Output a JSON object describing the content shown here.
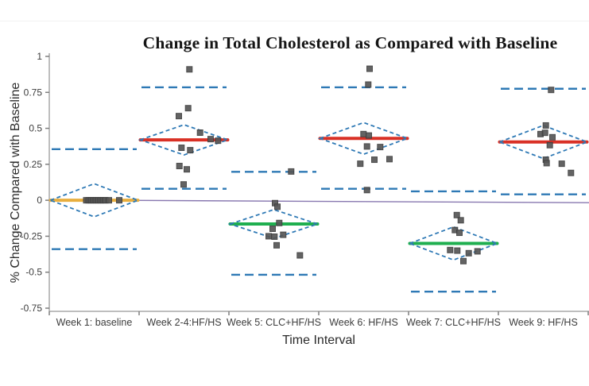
{
  "chart_data": {
    "type": "scatter",
    "title": "Change in Total Cholesterol as Compared with Baseline",
    "xlabel": "Time Interval",
    "ylabel": "% Change Compared with Baseline",
    "ylim": [
      -0.75,
      1
    ],
    "grid": false,
    "legend": "none",
    "y_tick_labels": [
      "1",
      "0.75",
      "0.5",
      "0.25",
      "0",
      "-0.25",
      "-0.5",
      "-0.75"
    ],
    "y_tick_values": [
      1,
      0.75,
      0.5,
      0.25,
      0,
      -0.25,
      -0.5,
      -0.75
    ],
    "categories": [
      "Week 1: baseline",
      "Week 2-4:HF/HS",
      "Week 5: CLC+HF/HS",
      "Week 6: HF/HS",
      "Week 7: CLC+HF/HS",
      "Week 9: HF/HS"
    ],
    "colors": {
      "diamond_blue": "#2E79B5",
      "limit_blue": "#2E79B5",
      "red_mean": "#D93025",
      "green_mean": "#1FAF4F",
      "orange_mean": "#E8AE3E",
      "fit_purple": "#8878B0",
      "point_gray": "#565656",
      "point_border": "#3E3E3E",
      "axis_gray": "#A9A9A9",
      "tick_gray": "#7F7F7F"
    },
    "groups": [
      {
        "label": "Week 1: baseline",
        "mean": 0.0,
        "mean_color": "#E8AE3E",
        "ci_half": 0.115,
        "limit_upper": 0.355,
        "limit_lower": -0.34,
        "points": [
          [
            -10,
            0
          ],
          [
            -7,
            0
          ],
          [
            -4,
            0
          ],
          [
            -1,
            0
          ],
          [
            2,
            0
          ],
          [
            5,
            0
          ],
          [
            8,
            0
          ],
          [
            11,
            0
          ],
          [
            14,
            0
          ],
          [
            18.5,
            0
          ],
          [
            31.5,
            0
          ]
        ]
      },
      {
        "label": "Week 2-4:HF/HS",
        "mean": 0.42,
        "mean_color": "#D93025",
        "ci_half": 0.105,
        "limit_upper": 0.785,
        "limit_lower": 0.08,
        "points": [
          [
            6.8,
            0.91
          ],
          [
            5.2,
            0.64
          ],
          [
            -6.5,
            0.585
          ],
          [
            20.2,
            0.47
          ],
          [
            33.5,
            0.425
          ],
          [
            42.8,
            0.414
          ],
          [
            -3.2,
            0.365
          ],
          [
            7.8,
            0.348
          ],
          [
            -5.8,
            0.238
          ],
          [
            3.5,
            0.215
          ],
          [
            -0.5,
            0.11
          ]
        ]
      },
      {
        "label": "Week 5: CLC+HF/HS",
        "mean": -0.165,
        "mean_color": "#1FAF4F",
        "ci_half": 0.1,
        "limit_upper": 0.198,
        "limit_lower": -0.518,
        "points": [
          [
            21.8,
            0.2
          ],
          [
            1.5,
            -0.02
          ],
          [
            4.5,
            -0.045
          ],
          [
            6.8,
            -0.158
          ],
          [
            -1.5,
            -0.198
          ],
          [
            -6.5,
            -0.25
          ],
          [
            0.8,
            -0.253
          ],
          [
            11.8,
            -0.24
          ],
          [
            3.5,
            -0.313
          ],
          [
            32.8,
            -0.383
          ]
        ]
      },
      {
        "label": "Week 6: HF/HS",
        "mean": 0.43,
        "mean_color": "#D93025",
        "ci_half": 0.11,
        "limit_upper": 0.785,
        "limit_lower": 0.08,
        "points": [
          [
            7.5,
            0.914
          ],
          [
            5.8,
            0.804
          ],
          [
            -0.2,
            0.46
          ],
          [
            6.5,
            0.45
          ],
          [
            4.2,
            0.374
          ],
          [
            20.8,
            0.37
          ],
          [
            13.5,
            0.282
          ],
          [
            32.5,
            0.286
          ],
          [
            -4.2,
            0.254
          ],
          [
            4.2,
            0.071
          ]
        ]
      },
      {
        "label": "Week 7: CLC+HF/HS",
        "mean": -0.3,
        "mean_color": "#1FAF4F",
        "ci_half": 0.115,
        "limit_upper": 0.062,
        "limit_lower": -0.635,
        "points": [
          [
            4.2,
            -0.103
          ],
          [
            9.2,
            -0.139
          ],
          [
            1.8,
            -0.207
          ],
          [
            7.5,
            -0.226
          ],
          [
            -4.2,
            -0.346
          ],
          [
            4.8,
            -0.35
          ],
          [
            19.2,
            -0.368
          ],
          [
            30.2,
            -0.355
          ],
          [
            12.5,
            -0.423
          ]
        ]
      },
      {
        "label": "Week 9: HF/HS",
        "mean": 0.405,
        "mean_color": "#D93025",
        "ci_half": 0.115,
        "limit_upper": 0.775,
        "limit_lower": 0.041,
        "points": [
          [
            9.8,
            0.767
          ],
          [
            3.2,
            0.52
          ],
          [
            -3.5,
            0.46
          ],
          [
            2.2,
            0.469
          ],
          [
            11.5,
            0.438
          ],
          [
            8.2,
            0.383
          ],
          [
            3.2,
            0.282
          ],
          [
            4.2,
            0.258
          ],
          [
            23.2,
            0.254
          ],
          [
            34.8,
            0.19
          ]
        ]
      }
    ],
    "fit_line": {
      "v_start": 0.002,
      "v_end": -0.017
    }
  }
}
